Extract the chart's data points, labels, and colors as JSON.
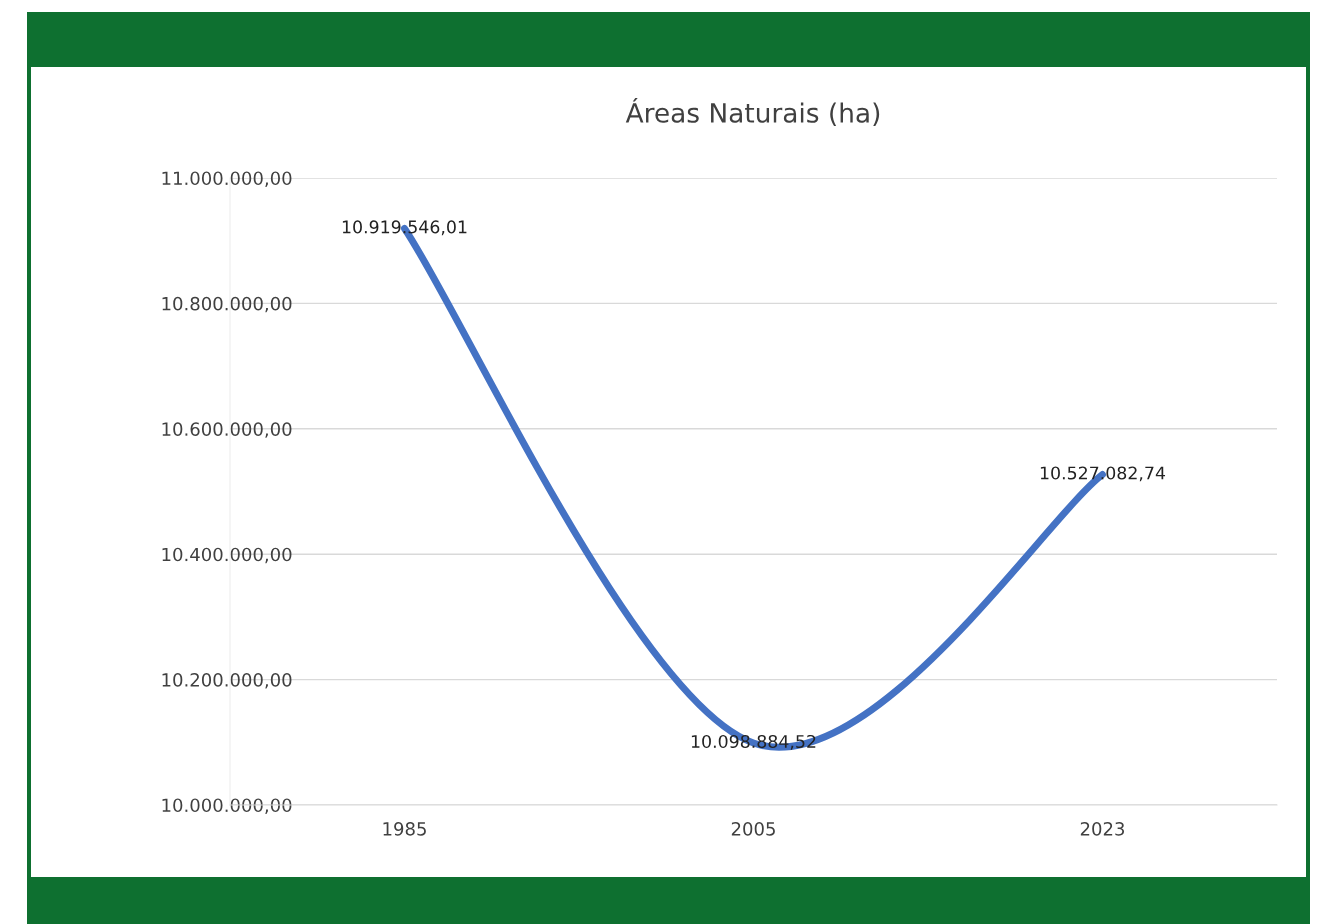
{
  "chart_data": {
    "type": "line",
    "title": "Áreas Naturais (ha)",
    "categories": [
      "1985",
      "2005",
      "2023"
    ],
    "series": [
      {
        "color": "#4472c4",
        "values": [
          10919546.01,
          10098884.52,
          10527082.74
        ],
        "value_labels": [
          "10.919.546,01",
          "10.098.884,52",
          "10.527.082,74"
        ]
      }
    ],
    "ylim": [
      10000000,
      11000000
    ],
    "yticks": [
      {
        "value": 10000000,
        "label": "10.000.000,00"
      },
      {
        "value": 10200000,
        "label": "10.200.000,00"
      },
      {
        "value": 10400000,
        "label": "10.400.000,00"
      },
      {
        "value": 10600000,
        "label": "10.600.000,00"
      },
      {
        "value": 10800000,
        "label": "10.800.000,00"
      },
      {
        "value": 11000000,
        "label": "11.000.000,00"
      }
    ],
    "grid": "y",
    "legend": false,
    "marker": "none",
    "line_style": "solid"
  }
}
